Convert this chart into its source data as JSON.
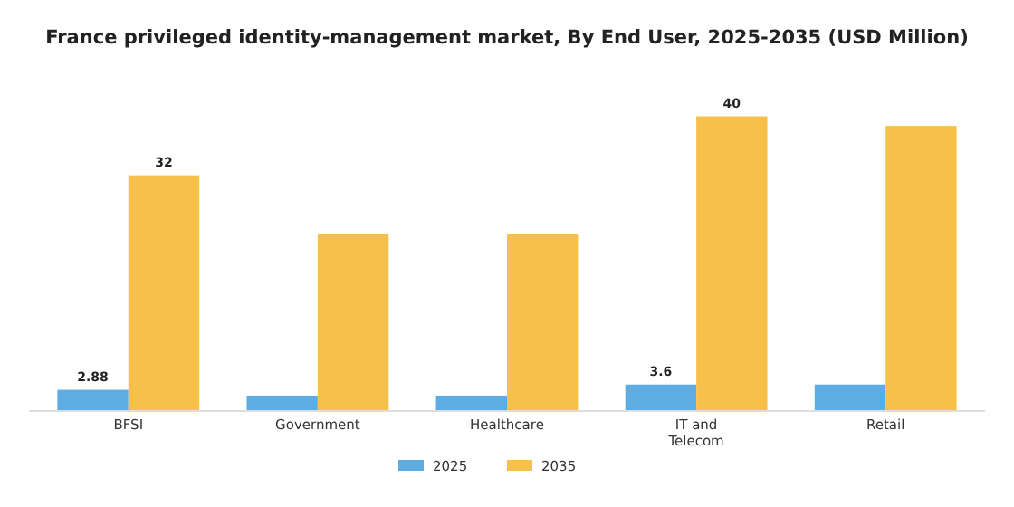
{
  "chart_data": {
    "type": "bar",
    "title": "France privileged identity-management market, By End User, 2025-2035 (USD Million)",
    "categories": [
      "BFSI",
      "Government",
      "Healthcare",
      "IT and Telecom",
      "Retail"
    ],
    "series": [
      {
        "name": "2025",
        "color": "#5dade2",
        "values": [
          2.88,
          2.1,
          2.1,
          3.6,
          3.6
        ],
        "value_labels": [
          "2.88",
          null,
          null,
          "3.6",
          null
        ]
      },
      {
        "name": "2035",
        "color": "#f7c04a",
        "values": [
          32,
          24,
          24,
          40,
          38.7
        ],
        "value_labels": [
          "32",
          null,
          null,
          "40",
          null
        ]
      }
    ],
    "legend": "bottom",
    "grid": false
  }
}
